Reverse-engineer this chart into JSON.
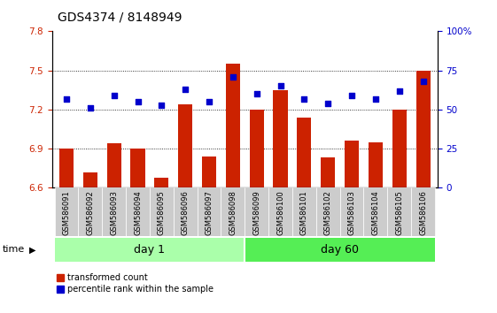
{
  "title": "GDS4374 / 8148949",
  "samples": [
    "GSM586091",
    "GSM586092",
    "GSM586093",
    "GSM586094",
    "GSM586095",
    "GSM586096",
    "GSM586097",
    "GSM586098",
    "GSM586099",
    "GSM586100",
    "GSM586101",
    "GSM586102",
    "GSM586103",
    "GSM586104",
    "GSM586105",
    "GSM586106"
  ],
  "transformed_count": [
    6.9,
    6.72,
    6.94,
    6.9,
    6.68,
    7.24,
    6.84,
    7.55,
    7.2,
    7.35,
    7.14,
    6.83,
    6.96,
    6.95,
    7.2,
    7.5
  ],
  "percentile_rank": [
    57,
    51,
    59,
    55,
    53,
    63,
    55,
    71,
    60,
    65,
    57,
    54,
    59,
    57,
    62,
    68
  ],
  "day1_count": 8,
  "day60_count": 8,
  "ylim_left": [
    6.6,
    7.8
  ],
  "ylim_right": [
    0,
    100
  ],
  "yticks_left": [
    6.6,
    6.9,
    7.2,
    7.5,
    7.8
  ],
  "yticks_right": [
    0,
    25,
    50,
    75,
    100
  ],
  "bar_color": "#cc2200",
  "dot_color": "#0000cc",
  "day1_color": "#aaffaa",
  "day60_color": "#55ee55",
  "tick_bg_color": "#cccccc",
  "grid_color": "#000000",
  "bar_width": 0.6,
  "title_fontsize": 10,
  "tick_fontsize": 7.5,
  "label_fontsize": 6,
  "day_fontsize": 9,
  "legend_fontsize": 7
}
